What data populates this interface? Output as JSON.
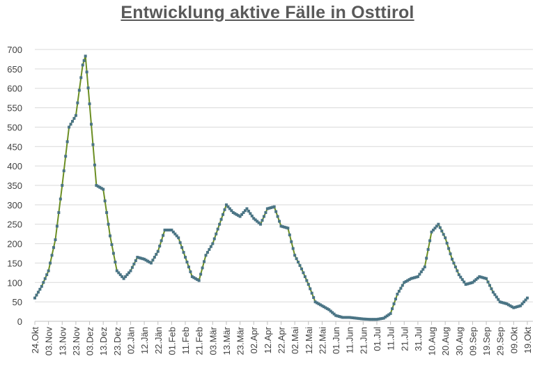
{
  "chart_data": {
    "type": "line",
    "title": "Entwicklung aktive Fälle in Osttirol",
    "xlabel": "",
    "ylabel": "",
    "ylim": [
      0,
      700
    ],
    "yticks": [
      0,
      50,
      100,
      150,
      200,
      250,
      300,
      350,
      400,
      450,
      500,
      550,
      600,
      650,
      700
    ],
    "grid": true,
    "legend": "none",
    "xtick_labels": [
      "24.Okt",
      "03.Nov",
      "13.Nov",
      "23.Nov",
      "03.Dez",
      "13.Dez",
      "23.Dez",
      "02.Jän",
      "12.Jän",
      "22.Jän",
      "01.Feb",
      "11.Feb",
      "21.Feb",
      "03.Mär",
      "13.Mär",
      "23.Mär",
      "02.Apr",
      "12.Apr",
      "22.Apr",
      "02.Mai",
      "12.Mai",
      "22.Mai",
      "01.Jun",
      "11.Jun",
      "21.Jun",
      "01.Jul",
      "11.Jul",
      "21.Jul",
      "31.Jul",
      "10.Aug",
      "20.Aug",
      "30.Aug",
      "09.Sep",
      "19.Sep",
      "29.Sep",
      "09.Okt",
      "19.Okt"
    ],
    "x_step_days": 5,
    "values": [
      60,
      90,
      130,
      210,
      350,
      500,
      530,
      660,
      560,
      350,
      340,
      220,
      130,
      110,
      130,
      165,
      160,
      150,
      180,
      235,
      235,
      215,
      165,
      115,
      105,
      170,
      200,
      250,
      300,
      280,
      270,
      290,
      265,
      250,
      290,
      295,
      245,
      240,
      170,
      135,
      95,
      50,
      40,
      30,
      15,
      10,
      10,
      8,
      6,
      5,
      5,
      8,
      20,
      70,
      100,
      110,
      115,
      140,
      230,
      250,
      215,
      160,
      120,
      95,
      100,
      115,
      110,
      75,
      50,
      45,
      35,
      40,
      60
    ],
    "peak": {
      "x": "30.Nov",
      "value": 683
    },
    "colors": {
      "line": "#6b8e23",
      "marker": "#4a7485",
      "grid": "#d9d9d9",
      "text": "#404040",
      "title": "#595959"
    }
  }
}
